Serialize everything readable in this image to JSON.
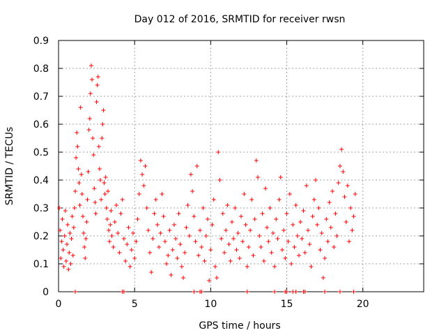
{
  "chart_data": {
    "type": "scatter",
    "title": "Day 012 of 2016, SRMTID for receiver rwsn",
    "xlabel": "GPS time / hours",
    "ylabel": "SRMTID / TECUs",
    "xlim": [
      0,
      24
    ],
    "ylim": [
      0,
      0.9
    ],
    "xticks": [
      "0",
      "5",
      "10",
      "15",
      "20"
    ],
    "yticks": [
      "0",
      "0.1",
      "0.2",
      "0.3",
      "0.4",
      "0.5",
      "0.6",
      "0.7",
      "0.8",
      "0.9"
    ],
    "grid": true,
    "marker": "+",
    "color": "#ff0000",
    "series": [
      {
        "name": "SRMTID",
        "points": [
          [
            0.05,
            0.3
          ],
          [
            0.1,
            0.22
          ],
          [
            0.15,
            0.12
          ],
          [
            0.2,
            0.18
          ],
          [
            0.25,
            0.26
          ],
          [
            0.3,
            0.15
          ],
          [
            0.35,
            0.09
          ],
          [
            0.4,
            0.2
          ],
          [
            0.45,
            0.29
          ],
          [
            0.5,
            0.11
          ],
          [
            0.55,
            0.17
          ],
          [
            0.6,
            0.24
          ],
          [
            0.65,
            0.08
          ],
          [
            0.7,
            0.14
          ],
          [
            0.75,
            0.21
          ],
          [
            0.8,
            0.1
          ],
          [
            0.85,
            0.19
          ],
          [
            0.9,
            0.27
          ],
          [
            0.95,
            0.13
          ],
          [
            1.0,
            0.23
          ],
          [
            1.05,
            0.3
          ],
          [
            1.1,
            0.36
          ],
          [
            1.15,
            0.48
          ],
          [
            1.2,
            0.57
          ],
          [
            1.25,
            0.52
          ],
          [
            1.3,
            0.44
          ],
          [
            1.35,
            0.39
          ],
          [
            1.4,
            0.31
          ],
          [
            1.45,
            0.66
          ],
          [
            1.5,
            0.42
          ],
          [
            1.55,
            0.35
          ],
          [
            1.6,
            0.27
          ],
          [
            1.65,
            0.21
          ],
          [
            1.7,
            0.16
          ],
          [
            1.75,
            0.12
          ],
          [
            1.8,
            0.19
          ],
          [
            1.85,
            0.25
          ],
          [
            1.9,
            0.33
          ],
          [
            1.95,
            0.43
          ],
          [
            2.0,
            0.58
          ],
          [
            2.05,
            0.62
          ],
          [
            2.1,
            0.71
          ],
          [
            2.15,
            0.81
          ],
          [
            2.2,
            0.76
          ],
          [
            2.25,
            0.55
          ],
          [
            2.3,
            0.49
          ],
          [
            2.35,
            0.37
          ],
          [
            2.4,
            0.32
          ],
          [
            2.45,
            0.28
          ],
          [
            2.5,
            0.68
          ],
          [
            2.55,
            0.74
          ],
          [
            2.6,
            0.77
          ],
          [
            2.65,
            0.52
          ],
          [
            2.7,
            0.44
          ],
          [
            2.75,
            0.4
          ],
          [
            2.8,
            0.33
          ],
          [
            2.85,
            0.55
          ],
          [
            2.9,
            0.6
          ],
          [
            2.95,
            0.65
          ],
          [
            3.0,
            0.39
          ],
          [
            3.05,
            0.35
          ],
          [
            3.1,
            0.41
          ],
          [
            3.15,
            0.3
          ],
          [
            3.2,
            0.26
          ],
          [
            3.25,
            0.36
          ],
          [
            3.3,
            0.22
          ],
          [
            3.35,
            0.18
          ],
          [
            3.4,
            0.24
          ],
          [
            3.45,
            0.29
          ],
          [
            3.5,
            0.2
          ],
          [
            3.6,
            0.16
          ],
          [
            3.7,
            0.25
          ],
          [
            3.8,
            0.31
          ],
          [
            3.9,
            0.21
          ],
          [
            4.0,
            0.14
          ],
          [
            4.1,
            0.28
          ],
          [
            4.2,
            0.33
          ],
          [
            4.3,
            0.19
          ],
          [
            4.4,
            0.11
          ],
          [
            4.5,
            0.17
          ],
          [
            4.6,
            0.23
          ],
          [
            4.7,
            0.09
          ],
          [
            4.8,
            0.15
          ],
          [
            4.9,
            0.21
          ],
          [
            5.0,
            0.12
          ],
          [
            5.1,
            0.18
          ],
          [
            5.2,
            0.26
          ],
          [
            5.3,
            0.35
          ],
          [
            5.4,
            0.47
          ],
          [
            5.5,
            0.42
          ],
          [
            5.6,
            0.38
          ],
          [
            5.7,
            0.45
          ],
          [
            5.8,
            0.3
          ],
          [
            5.9,
            0.22
          ],
          [
            6.0,
            0.14
          ],
          [
            6.1,
            0.07
          ],
          [
            6.2,
            0.19
          ],
          [
            6.3,
            0.28
          ],
          [
            6.4,
            0.33
          ],
          [
            6.5,
            0.24
          ],
          [
            6.6,
            0.16
          ],
          [
            6.7,
            0.21
          ],
          [
            6.8,
            0.35
          ],
          [
            6.9,
            0.27
          ],
          [
            7.0,
            0.18
          ],
          [
            7.1,
            0.1
          ],
          [
            7.2,
            0.13
          ],
          [
            7.3,
            0.22
          ],
          [
            7.4,
            0.06
          ],
          [
            7.5,
            0.15
          ],
          [
            7.6,
            0.24
          ],
          [
            7.7,
            0.19
          ],
          [
            7.8,
            0.12
          ],
          [
            7.9,
            0.28
          ],
          [
            8.0,
            0.17
          ],
          [
            8.1,
            0.09
          ],
          [
            8.2,
            0.05
          ],
          [
            8.3,
            0.14
          ],
          [
            8.4,
            0.23
          ],
          [
            8.5,
            0.31
          ],
          [
            8.6,
            0.2
          ],
          [
            8.7,
            0.42
          ],
          [
            8.8,
            0.36
          ],
          [
            8.9,
            0.27
          ],
          [
            9.0,
            0.18
          ],
          [
            9.1,
            0.45
          ],
          [
            9.2,
            0.13
          ],
          [
            9.3,
            0.22
          ],
          [
            9.4,
            0.16
          ],
          [
            9.5,
            0.3
          ],
          [
            9.6,
            0.11
          ],
          [
            9.7,
            0.2
          ],
          [
            9.8,
            0.26
          ],
          [
            9.9,
            0.04
          ],
          [
            10.0,
            0.15
          ],
          [
            10.1,
            0.24
          ],
          [
            10.2,
            0.33
          ],
          [
            10.3,
            0.09
          ],
          [
            10.4,
            0.05
          ],
          [
            10.5,
            0.5
          ],
          [
            10.6,
            0.4
          ],
          [
            10.7,
            0.19
          ],
          [
            10.8,
            0.28
          ],
          [
            10.9,
            0.14
          ],
          [
            11.0,
            0.22
          ],
          [
            11.1,
            0.31
          ],
          [
            11.2,
            0.17
          ],
          [
            11.3,
            0.11
          ],
          [
            11.4,
            0.25
          ],
          [
            11.5,
            0.19
          ],
          [
            11.6,
            0.3
          ],
          [
            11.7,
            0.15
          ],
          [
            11.8,
            0.21
          ],
          [
            11.9,
            0.12
          ],
          [
            12.0,
            0.27
          ],
          [
            12.1,
            0.18
          ],
          [
            12.2,
            0.35
          ],
          [
            12.3,
            0.24
          ],
          [
            12.4,
            0.09
          ],
          [
            12.5,
            0.16
          ],
          [
            12.6,
            0.22
          ],
          [
            12.7,
            0.33
          ],
          [
            12.8,
            0.13
          ],
          [
            12.9,
            0.26
          ],
          [
            13.0,
            0.47
          ],
          [
            13.1,
            0.41
          ],
          [
            13.2,
            0.2
          ],
          [
            13.3,
            0.16
          ],
          [
            13.4,
            0.28
          ],
          [
            13.5,
            0.11
          ],
          [
            13.6,
            0.37
          ],
          [
            13.7,
            0.23
          ],
          [
            13.8,
            0.18
          ],
          [
            13.9,
            0.3
          ],
          [
            14.0,
            0.14
          ],
          [
            14.1,
            0.21
          ],
          [
            14.2,
            0.09
          ],
          [
            14.3,
            0.26
          ],
          [
            14.4,
            0.19
          ],
          [
            14.5,
            0.33
          ],
          [
            14.6,
            0.41
          ],
          [
            14.7,
            0.15
          ],
          [
            14.8,
            0.22
          ],
          [
            14.9,
            0.12
          ],
          [
            15.0,
            0.28
          ],
          [
            15.1,
            0.18
          ],
          [
            15.2,
            0.35
          ],
          [
            15.3,
            0.1
          ],
          [
            15.4,
            0.24
          ],
          [
            15.5,
            0.16
          ],
          [
            15.6,
            0.31
          ],
          [
            15.7,
            0.2
          ],
          [
            15.8,
            0.13
          ],
          [
            15.9,
            0.25
          ],
          [
            16.0,
            0.19
          ],
          [
            16.1,
            0.29
          ],
          [
            16.2,
            0.14
          ],
          [
            16.3,
            0.38
          ],
          [
            16.4,
            0.22
          ],
          [
            16.5,
            0.17
          ],
          [
            16.6,
            0.09
          ],
          [
            16.7,
            0.27
          ],
          [
            16.8,
            0.33
          ],
          [
            16.9,
            0.4
          ],
          [
            17.0,
            0.24
          ],
          [
            17.1,
            0.3
          ],
          [
            17.2,
            0.15
          ],
          [
            17.3,
            0.21
          ],
          [
            17.4,
            0.05
          ],
          [
            17.5,
            0.12
          ],
          [
            17.6,
            0.26
          ],
          [
            17.7,
            0.18
          ],
          [
            17.8,
            0.32
          ],
          [
            17.9,
            0.23
          ],
          [
            18.0,
            0.36
          ],
          [
            18.1,
            0.16
          ],
          [
            18.2,
            0.28
          ],
          [
            18.3,
            0.2
          ],
          [
            18.4,
            0.39
          ],
          [
            18.5,
            0.45
          ],
          [
            18.6,
            0.51
          ],
          [
            18.7,
            0.43
          ],
          [
            18.8,
            0.34
          ],
          [
            18.9,
            0.25
          ],
          [
            19.0,
            0.38
          ],
          [
            19.1,
            0.18
          ],
          [
            19.2,
            0.3
          ],
          [
            19.3,
            0.22
          ],
          [
            19.4,
            0.27
          ],
          [
            19.5,
            0.35
          ]
        ],
        "zero_points_x": [
          1.1,
          4.2,
          4.3,
          8.9,
          9.3,
          9.4,
          12.4,
          14.2,
          14.9,
          15.0,
          15.4,
          15.6,
          16.1,
          16.2,
          17.5,
          18.5,
          19.4
        ]
      }
    ]
  }
}
